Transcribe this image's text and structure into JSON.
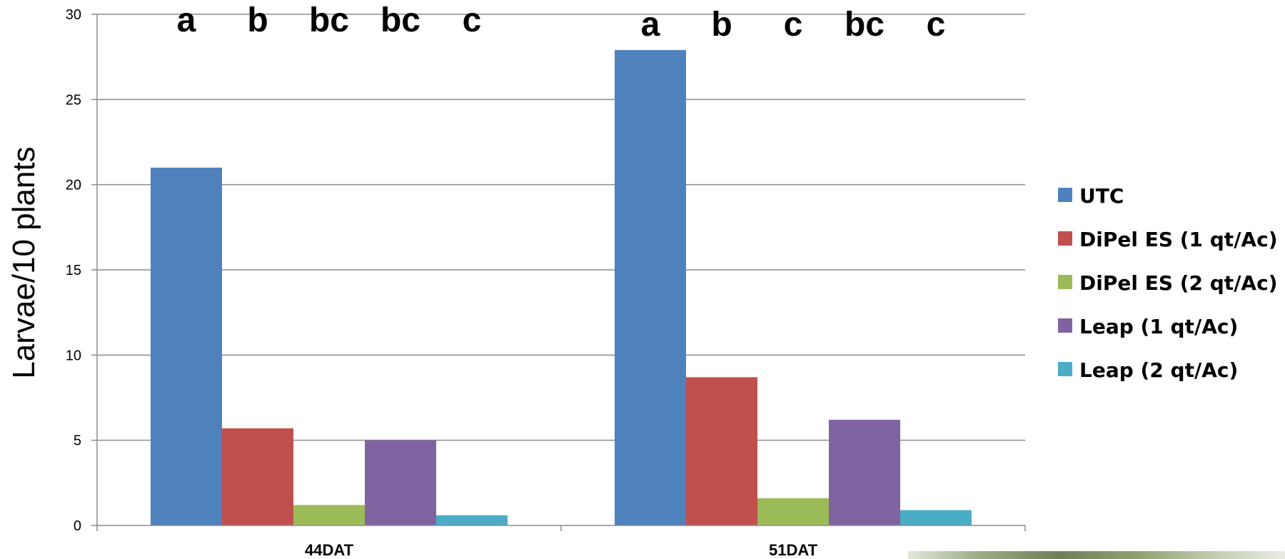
{
  "chart_data": {
    "type": "bar",
    "ylabel": "Larvae/10 plants",
    "xlabel": "",
    "ylim": [
      0,
      30
    ],
    "yticks": [
      0,
      5,
      10,
      15,
      20,
      25,
      30
    ],
    "grid": true,
    "legend_position": "right",
    "categories": [
      "44DAT",
      "51DAT"
    ],
    "series": [
      {
        "name": "UTC",
        "values": [
          21.0,
          27.9
        ],
        "color": "#4f81bd"
      },
      {
        "name": "DiPel ES (1 qt/Ac)",
        "values": [
          5.7,
          8.7
        ],
        "color": "#c0504d"
      },
      {
        "name": "DiPel ES (2 qt/Ac)",
        "values": [
          1.2,
          1.6
        ],
        "color": "#9bbb59"
      },
      {
        "name": "Leap (1 qt/Ac)",
        "values": [
          5.0,
          6.2
        ],
        "color": "#8064a2"
      },
      {
        "name": "Leap (2 qt/Ac)",
        "values": [
          0.6,
          0.9
        ],
        "color": "#4bacc6"
      }
    ],
    "significance_letters": [
      [
        "a",
        "b",
        "bc",
        "bc",
        "c"
      ],
      [
        "a",
        "b",
        "c",
        "bc",
        "c"
      ]
    ]
  },
  "photo": {
    "description_icon": "leaf-photo"
  }
}
